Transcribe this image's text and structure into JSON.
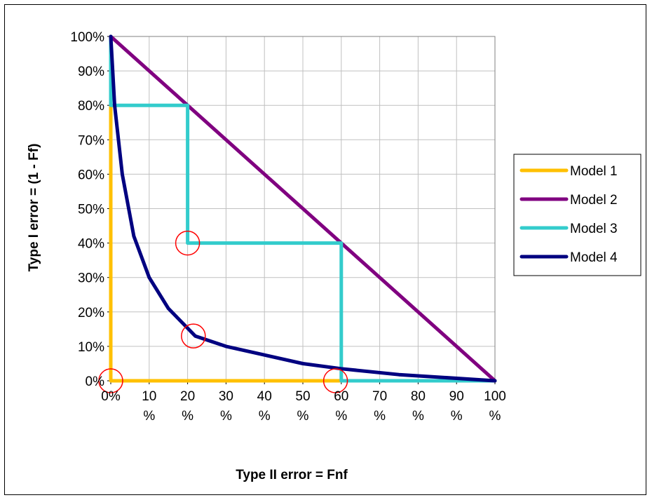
{
  "chart_data": {
    "type": "line",
    "title": "",
    "xlabel": "Type II error = Fnf",
    "ylabel": "Type I error = (1 - Ff)",
    "xlim": [
      0,
      100
    ],
    "ylim": [
      0,
      100
    ],
    "grid": true,
    "legend_position": "right",
    "x_tick_labels": [
      "0%",
      "10 %",
      "20 %",
      "30 %",
      "40 %",
      "50 %",
      "60 %",
      "70 %",
      "80 %",
      "90 %",
      "100 %"
    ],
    "y_tick_labels": [
      "0%",
      "10%",
      "20%",
      "30%",
      "40%",
      "50%",
      "60%",
      "70%",
      "80%",
      "90%",
      "100%"
    ],
    "series": [
      {
        "name": "Model 1",
        "color": "#FFC000",
        "points": [
          [
            0,
            100
          ],
          [
            0,
            0
          ],
          [
            100,
            0
          ]
        ]
      },
      {
        "name": "Model 2",
        "color": "#800080",
        "points": [
          [
            0,
            100
          ],
          [
            100,
            0
          ]
        ]
      },
      {
        "name": "Model 3",
        "color": "#33CCCC",
        "points": [
          [
            0,
            100
          ],
          [
            0,
            80
          ],
          [
            20,
            80
          ],
          [
            20,
            40
          ],
          [
            60,
            40
          ],
          [
            60,
            0
          ],
          [
            100,
            0
          ]
        ]
      },
      {
        "name": "Model 4",
        "color": "#000080",
        "points": [
          [
            0,
            100
          ],
          [
            1,
            80
          ],
          [
            3,
            60
          ],
          [
            6,
            42
          ],
          [
            10,
            30
          ],
          [
            15,
            21
          ],
          [
            22,
            13
          ],
          [
            30,
            10
          ],
          [
            40,
            7.5
          ],
          [
            50,
            5
          ],
          [
            60,
            3.5
          ],
          [
            75,
            1.8
          ],
          [
            100,
            0
          ]
        ]
      }
    ],
    "annotations": [
      {
        "type": "circle",
        "color": "#FF0000",
        "x": 0,
        "y": 0
      },
      {
        "type": "circle",
        "color": "#FF0000",
        "x": 20,
        "y": 40
      },
      {
        "type": "circle",
        "color": "#FF0000",
        "x": 21.5,
        "y": 13
      },
      {
        "type": "circle",
        "color": "#FF0000",
        "x": 58.5,
        "y": 0
      }
    ]
  }
}
